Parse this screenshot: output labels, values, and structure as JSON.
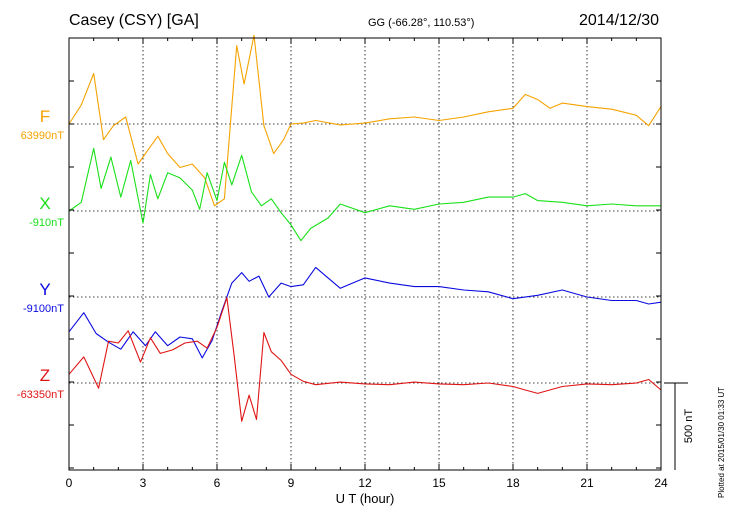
{
  "header": {
    "title": "Casey (CSY)  [GA]",
    "coords": "GG (-66.28°, 110.53°)",
    "date": "2014/12/30"
  },
  "footnote": "Plotted at 2015/01/30 01:33 UT",
  "chart_data": {
    "type": "line",
    "xlabel": "U T (hour)",
    "xticks": [
      0,
      3,
      6,
      9,
      12,
      15,
      18,
      21,
      24
    ],
    "xlim": [
      0,
      24
    ],
    "scale_bar": {
      "label": "500 nT",
      "value": 500
    },
    "series": [
      {
        "name": "F",
        "baseline_label": "63990nT",
        "baseline": 63990,
        "color": "#f5a300",
        "x": [
          0,
          0.5,
          1.0,
          1.4,
          1.8,
          2.3,
          2.8,
          3.2,
          3.6,
          4.0,
          4.5,
          5.0,
          5.5,
          5.9,
          6.3,
          6.8,
          7.1,
          7.5,
          7.9,
          8.3,
          8.7,
          9.0,
          9.5,
          10,
          11,
          12,
          13,
          14,
          15,
          16,
          17,
          18,
          18.5,
          19,
          19.5,
          20,
          21,
          22,
          23,
          23.5,
          24
        ],
        "y": [
          63990,
          64100,
          64280,
          63900,
          63980,
          64030,
          63760,
          63840,
          63920,
          63820,
          63740,
          63760,
          63680,
          63520,
          63560,
          64440,
          64220,
          64500,
          63980,
          63820,
          63900,
          63990,
          63995,
          64010,
          63985,
          63995,
          64020,
          64030,
          64010,
          64030,
          64060,
          64080,
          64160,
          64130,
          64080,
          64110,
          64090,
          64075,
          64040,
          63980,
          64090
        ]
      },
      {
        "name": "X",
        "baseline_label": "-910nT",
        "baseline": -910,
        "color": "#19e019",
        "x": [
          0,
          0.5,
          1.0,
          1.3,
          1.7,
          2.1,
          2.5,
          3.0,
          3.3,
          3.6,
          4.0,
          4.5,
          5.0,
          5.3,
          5.6,
          6.0,
          6.3,
          6.6,
          7.0,
          7.4,
          7.8,
          8.2,
          8.6,
          9.0,
          9.4,
          9.8,
          10.5,
          11,
          12,
          13,
          14,
          15,
          16,
          17,
          18,
          18.5,
          19,
          20,
          21,
          22,
          23,
          24
        ],
        "y": [
          -910,
          -860,
          -550,
          -780,
          -600,
          -830,
          -620,
          -980,
          -700,
          -840,
          -690,
          -720,
          -790,
          -900,
          -690,
          -850,
          -630,
          -760,
          -590,
          -800,
          -880,
          -840,
          -920,
          -990,
          -1080,
          -1010,
          -950,
          -870,
          -920,
          -880,
          -900,
          -870,
          -860,
          -830,
          -830,
          -810,
          -850,
          -860,
          -880,
          -870,
          -880,
          -880
        ]
      },
      {
        "name": "Y",
        "baseline_label": "-9100nT",
        "baseline": -9100,
        "color": "#0a0ae0",
        "x": [
          0,
          0.6,
          1.1,
          1.6,
          2.1,
          2.6,
          3.1,
          3.5,
          4.0,
          4.5,
          5.0,
          5.4,
          5.8,
          6.2,
          6.6,
          7.0,
          7.3,
          7.7,
          8.1,
          8.6,
          9.0,
          9.5,
          10,
          11,
          12,
          13,
          14,
          15,
          16,
          17,
          18,
          19,
          20,
          21,
          22,
          23,
          23.5,
          24
        ],
        "y": [
          -9300,
          -9190,
          -9310,
          -9360,
          -9400,
          -9300,
          -9380,
          -9300,
          -9380,
          -9330,
          -9340,
          -9450,
          -9350,
          -9180,
          -9020,
          -8960,
          -9010,
          -8980,
          -9100,
          -9020,
          -9040,
          -9030,
          -8930,
          -9050,
          -8990,
          -9020,
          -9040,
          -9040,
          -9060,
          -9070,
          -9110,
          -9090,
          -9060,
          -9100,
          -9120,
          -9120,
          -9140,
          -9130
        ]
      },
      {
        "name": "Z",
        "baseline_label": "-63350nT",
        "baseline": -63350,
        "color": "#e01414",
        "x": [
          0,
          0.6,
          1.2,
          1.6,
          2.0,
          2.4,
          2.9,
          3.3,
          3.7,
          4.2,
          4.7,
          5.2,
          5.6,
          6.0,
          6.4,
          6.7,
          7.0,
          7.3,
          7.6,
          7.9,
          8.2,
          8.6,
          9.0,
          9.5,
          10,
          11,
          12,
          13,
          14,
          15,
          16,
          17,
          18,
          18.5,
          19,
          20,
          21,
          22,
          23,
          23.5,
          24
        ],
        "y": [
          -63300,
          -63200,
          -63380,
          -63110,
          -63120,
          -63050,
          -63230,
          -63090,
          -63180,
          -63160,
          -63120,
          -63110,
          -63150,
          -63030,
          -62860,
          -63200,
          -63570,
          -63420,
          -63560,
          -63060,
          -63170,
          -63220,
          -63300,
          -63340,
          -63360,
          -63345,
          -63355,
          -63360,
          -63345,
          -63355,
          -63360,
          -63350,
          -63370,
          -63390,
          -63410,
          -63370,
          -63355,
          -63360,
          -63350,
          -63330,
          -63390
        ]
      }
    ]
  }
}
